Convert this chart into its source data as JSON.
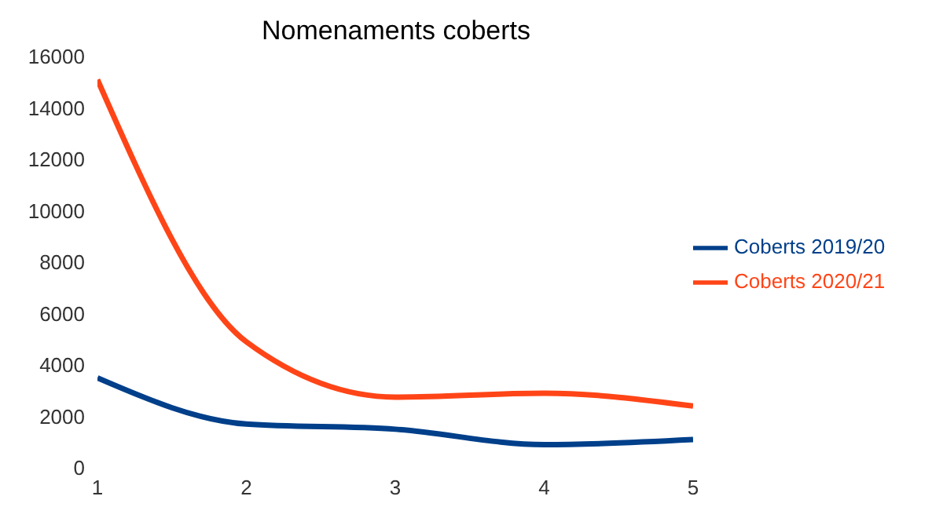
{
  "chart_data": {
    "type": "line",
    "title": "Nomenaments coberts",
    "x": [
      1,
      2,
      3,
      4,
      5
    ],
    "xlim": [
      1,
      5
    ],
    "xticks": [
      1,
      2,
      3,
      4,
      5
    ],
    "ylim": [
      0,
      16000
    ],
    "yticks": [
      0,
      2000,
      4000,
      6000,
      8000,
      10000,
      12000,
      14000,
      16000
    ],
    "grid": false,
    "legend": "right",
    "marker": "none",
    "line_style": "solid",
    "series": [
      {
        "name": "Coberts 2019/20",
        "color": "#003f8a",
        "values": [
          3500,
          1700,
          1500,
          900,
          1100
        ]
      },
      {
        "name": "Coberts 2020/21",
        "color": "#ff4517",
        "values": [
          15100,
          4900,
          2750,
          2900,
          2400
        ]
      }
    ]
  }
}
